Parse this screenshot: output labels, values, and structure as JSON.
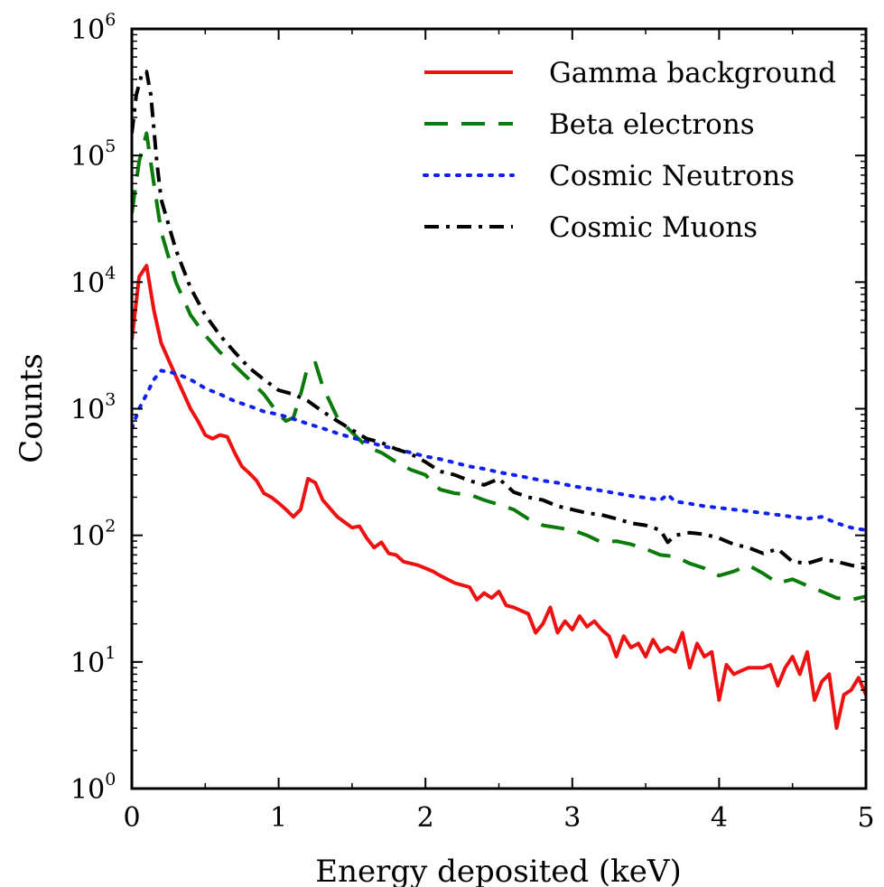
{
  "chart_data": {
    "type": "line",
    "title": "",
    "xlabel": "Energy deposited (keV)",
    "ylabel": "Counts",
    "xlim": [
      0,
      5
    ],
    "ylim": [
      1,
      1000000
    ],
    "yscale": "log",
    "grid": false,
    "legend_position": "top-right",
    "x_ticks": [
      {
        "value": 0,
        "label": "0"
      },
      {
        "value": 1,
        "label": "1"
      },
      {
        "value": 2,
        "label": "2"
      },
      {
        "value": 3,
        "label": "3"
      },
      {
        "value": 4,
        "label": "4"
      },
      {
        "value": 5,
        "label": "5"
      }
    ],
    "y_ticks": [
      {
        "value": 1,
        "base": "10",
        "exp": "0"
      },
      {
        "value": 10,
        "base": "10",
        "exp": "1"
      },
      {
        "value": 100,
        "base": "10",
        "exp": "2"
      },
      {
        "value": 1000,
        "base": "10",
        "exp": "3"
      },
      {
        "value": 10000,
        "base": "10",
        "exp": "4"
      },
      {
        "value": 100000,
        "base": "10",
        "exp": "5"
      },
      {
        "value": 1000000,
        "base": "10",
        "exp": "6"
      }
    ],
    "series": [
      {
        "name": "Gamma background",
        "color": "#ee1111",
        "style": "solid",
        "points": [
          [
            0.0,
            3500
          ],
          [
            0.05,
            11000
          ],
          [
            0.1,
            13500
          ],
          [
            0.15,
            6000
          ],
          [
            0.2,
            3300
          ],
          [
            0.3,
            1800
          ],
          [
            0.4,
            1000
          ],
          [
            0.45,
            800
          ],
          [
            0.5,
            620
          ],
          [
            0.55,
            580
          ],
          [
            0.6,
            620
          ],
          [
            0.65,
            600
          ],
          [
            0.7,
            450
          ],
          [
            0.75,
            350
          ],
          [
            0.8,
            310
          ],
          [
            0.85,
            270
          ],
          [
            0.9,
            215
          ],
          [
            0.95,
            200
          ],
          [
            1.0,
            180
          ],
          [
            1.05,
            160
          ],
          [
            1.1,
            140
          ],
          [
            1.15,
            160
          ],
          [
            1.2,
            280
          ],
          [
            1.25,
            260
          ],
          [
            1.3,
            190
          ],
          [
            1.4,
            140
          ],
          [
            1.5,
            115
          ],
          [
            1.55,
            118
          ],
          [
            1.6,
            95
          ],
          [
            1.65,
            80
          ],
          [
            1.7,
            88
          ],
          [
            1.75,
            72
          ],
          [
            1.8,
            70
          ],
          [
            1.85,
            62
          ],
          [
            1.9,
            60
          ],
          [
            1.95,
            58
          ],
          [
            2.0,
            55
          ],
          [
            2.05,
            52
          ],
          [
            2.1,
            48
          ],
          [
            2.2,
            42
          ],
          [
            2.3,
            39
          ],
          [
            2.35,
            31
          ],
          [
            2.4,
            35
          ],
          [
            2.45,
            32
          ],
          [
            2.5,
            36
          ],
          [
            2.55,
            28
          ],
          [
            2.6,
            27
          ],
          [
            2.7,
            24
          ],
          [
            2.75,
            17
          ],
          [
            2.8,
            20
          ],
          [
            2.85,
            27
          ],
          [
            2.9,
            17
          ],
          [
            2.95,
            21
          ],
          [
            3.0,
            18
          ],
          [
            3.05,
            23
          ],
          [
            3.1,
            19
          ],
          [
            3.15,
            21
          ],
          [
            3.2,
            18
          ],
          [
            3.25,
            16
          ],
          [
            3.3,
            11
          ],
          [
            3.35,
            16
          ],
          [
            3.4,
            13
          ],
          [
            3.45,
            14
          ],
          [
            3.5,
            11
          ],
          [
            3.55,
            15
          ],
          [
            3.6,
            12
          ],
          [
            3.65,
            13
          ],
          [
            3.7,
            12
          ],
          [
            3.75,
            17
          ],
          [
            3.8,
            9
          ],
          [
            3.85,
            14
          ],
          [
            3.9,
            11
          ],
          [
            3.95,
            12
          ],
          [
            4.0,
            5
          ],
          [
            4.05,
            9.5
          ],
          [
            4.1,
            8
          ],
          [
            4.15,
            8.5
          ],
          [
            4.2,
            9
          ],
          [
            4.3,
            9
          ],
          [
            4.35,
            9.5
          ],
          [
            4.4,
            6.5
          ],
          [
            4.45,
            9
          ],
          [
            4.5,
            11
          ],
          [
            4.55,
            8
          ],
          [
            4.6,
            12
          ],
          [
            4.65,
            5
          ],
          [
            4.7,
            7
          ],
          [
            4.75,
            8
          ],
          [
            4.8,
            3
          ],
          [
            4.85,
            5.5
          ],
          [
            4.9,
            6
          ],
          [
            4.95,
            7.5
          ],
          [
            5.0,
            5.5
          ]
        ]
      },
      {
        "name": "Beta electrons",
        "color": "#0a7a0a",
        "style": "dashed",
        "points": [
          [
            0.0,
            35000
          ],
          [
            0.05,
            90000
          ],
          [
            0.1,
            150000
          ],
          [
            0.15,
            60000
          ],
          [
            0.2,
            25000
          ],
          [
            0.3,
            10000
          ],
          [
            0.4,
            5500
          ],
          [
            0.5,
            3800
          ],
          [
            0.6,
            2800
          ],
          [
            0.7,
            2200
          ],
          [
            0.8,
            1700
          ],
          [
            0.9,
            1300
          ],
          [
            1.0,
            900
          ],
          [
            1.05,
            800
          ],
          [
            1.1,
            850
          ],
          [
            1.15,
            1300
          ],
          [
            1.2,
            2200
          ],
          [
            1.25,
            2300
          ],
          [
            1.3,
            1500
          ],
          [
            1.4,
            850
          ],
          [
            1.5,
            650
          ],
          [
            1.6,
            500
          ],
          [
            1.7,
            450
          ],
          [
            1.8,
            380
          ],
          [
            1.9,
            330
          ],
          [
            2.0,
            300
          ],
          [
            2.05,
            260
          ],
          [
            2.1,
            230
          ],
          [
            2.2,
            215
          ],
          [
            2.3,
            210
          ],
          [
            2.4,
            190
          ],
          [
            2.5,
            175
          ],
          [
            2.6,
            160
          ],
          [
            2.7,
            135
          ],
          [
            2.8,
            120
          ],
          [
            2.9,
            115
          ],
          [
            3.0,
            110
          ],
          [
            3.1,
            100
          ],
          [
            3.2,
            88
          ],
          [
            3.3,
            90
          ],
          [
            3.4,
            85
          ],
          [
            3.5,
            78
          ],
          [
            3.6,
            70
          ],
          [
            3.7,
            68
          ],
          [
            3.8,
            60
          ],
          [
            3.9,
            55
          ],
          [
            4.0,
            48
          ],
          [
            4.1,
            52
          ],
          [
            4.2,
            58
          ],
          [
            4.3,
            50
          ],
          [
            4.4,
            42
          ],
          [
            4.5,
            45
          ],
          [
            4.6,
            40
          ],
          [
            4.7,
            36
          ],
          [
            4.8,
            32
          ],
          [
            4.9,
            31
          ],
          [
            5.0,
            33
          ]
        ]
      },
      {
        "name": "Cosmic Neutrons",
        "color": "#1020ee",
        "style": "dotted",
        "points": [
          [
            0.0,
            700
          ],
          [
            0.05,
            1000
          ],
          [
            0.1,
            1300
          ],
          [
            0.15,
            1700
          ],
          [
            0.2,
            2000
          ],
          [
            0.3,
            1900
          ],
          [
            0.4,
            1700
          ],
          [
            0.5,
            1450
          ],
          [
            0.6,
            1300
          ],
          [
            0.7,
            1150
          ],
          [
            0.8,
            1050
          ],
          [
            0.9,
            950
          ],
          [
            1.0,
            900
          ],
          [
            1.1,
            830
          ],
          [
            1.2,
            760
          ],
          [
            1.3,
            700
          ],
          [
            1.4,
            640
          ],
          [
            1.5,
            590
          ],
          [
            1.6,
            550
          ],
          [
            1.7,
            510
          ],
          [
            1.8,
            480
          ],
          [
            1.9,
            450
          ],
          [
            2.0,
            420
          ],
          [
            2.1,
            400
          ],
          [
            2.2,
            375
          ],
          [
            2.3,
            350
          ],
          [
            2.4,
            335
          ],
          [
            2.5,
            315
          ],
          [
            2.6,
            300
          ],
          [
            2.7,
            285
          ],
          [
            2.8,
            270
          ],
          [
            2.9,
            260
          ],
          [
            3.0,
            245
          ],
          [
            3.1,
            235
          ],
          [
            3.2,
            225
          ],
          [
            3.3,
            215
          ],
          [
            3.4,
            205
          ],
          [
            3.5,
            198
          ],
          [
            3.6,
            190
          ],
          [
            3.65,
            210
          ],
          [
            3.7,
            185
          ],
          [
            3.8,
            178
          ],
          [
            3.9,
            170
          ],
          [
            4.0,
            165
          ],
          [
            4.1,
            160
          ],
          [
            4.2,
            155
          ],
          [
            4.3,
            150
          ],
          [
            4.4,
            145
          ],
          [
            4.5,
            140
          ],
          [
            4.6,
            135
          ],
          [
            4.7,
            140
          ],
          [
            4.8,
            125
          ],
          [
            4.9,
            115
          ],
          [
            5.0,
            110
          ]
        ]
      },
      {
        "name": "Cosmic Muons",
        "color": "#000000",
        "style": "dashdot",
        "points": [
          [
            0.0,
            150000
          ],
          [
            0.03,
            300000
          ],
          [
            0.07,
            450000
          ],
          [
            0.1,
            460000
          ],
          [
            0.13,
            300000
          ],
          [
            0.17,
            90000
          ],
          [
            0.2,
            45000
          ],
          [
            0.3,
            18000
          ],
          [
            0.4,
            9000
          ],
          [
            0.5,
            5500
          ],
          [
            0.6,
            3800
          ],
          [
            0.7,
            2800
          ],
          [
            0.8,
            2100
          ],
          [
            0.9,
            1700
          ],
          [
            1.0,
            1400
          ],
          [
            1.1,
            1300
          ],
          [
            1.2,
            1150
          ],
          [
            1.3,
            950
          ],
          [
            1.4,
            800
          ],
          [
            1.5,
            680
          ],
          [
            1.6,
            580
          ],
          [
            1.7,
            540
          ],
          [
            1.8,
            480
          ],
          [
            1.9,
            440
          ],
          [
            2.0,
            380
          ],
          [
            2.1,
            320
          ],
          [
            2.2,
            300
          ],
          [
            2.3,
            270
          ],
          [
            2.4,
            250
          ],
          [
            2.5,
            280
          ],
          [
            2.6,
            220
          ],
          [
            2.7,
            200
          ],
          [
            2.8,
            190
          ],
          [
            2.9,
            170
          ],
          [
            3.0,
            160
          ],
          [
            3.1,
            150
          ],
          [
            3.2,
            145
          ],
          [
            3.3,
            135
          ],
          [
            3.4,
            125
          ],
          [
            3.5,
            120
          ],
          [
            3.6,
            110
          ],
          [
            3.65,
            88
          ],
          [
            3.7,
            100
          ],
          [
            3.8,
            105
          ],
          [
            3.9,
            102
          ],
          [
            4.0,
            95
          ],
          [
            4.1,
            85
          ],
          [
            4.2,
            80
          ],
          [
            4.3,
            72
          ],
          [
            4.4,
            78
          ],
          [
            4.5,
            62
          ],
          [
            4.6,
            60
          ],
          [
            4.7,
            65
          ],
          [
            4.8,
            62
          ],
          [
            4.9,
            58
          ],
          [
            5.0,
            55
          ]
        ]
      }
    ]
  }
}
